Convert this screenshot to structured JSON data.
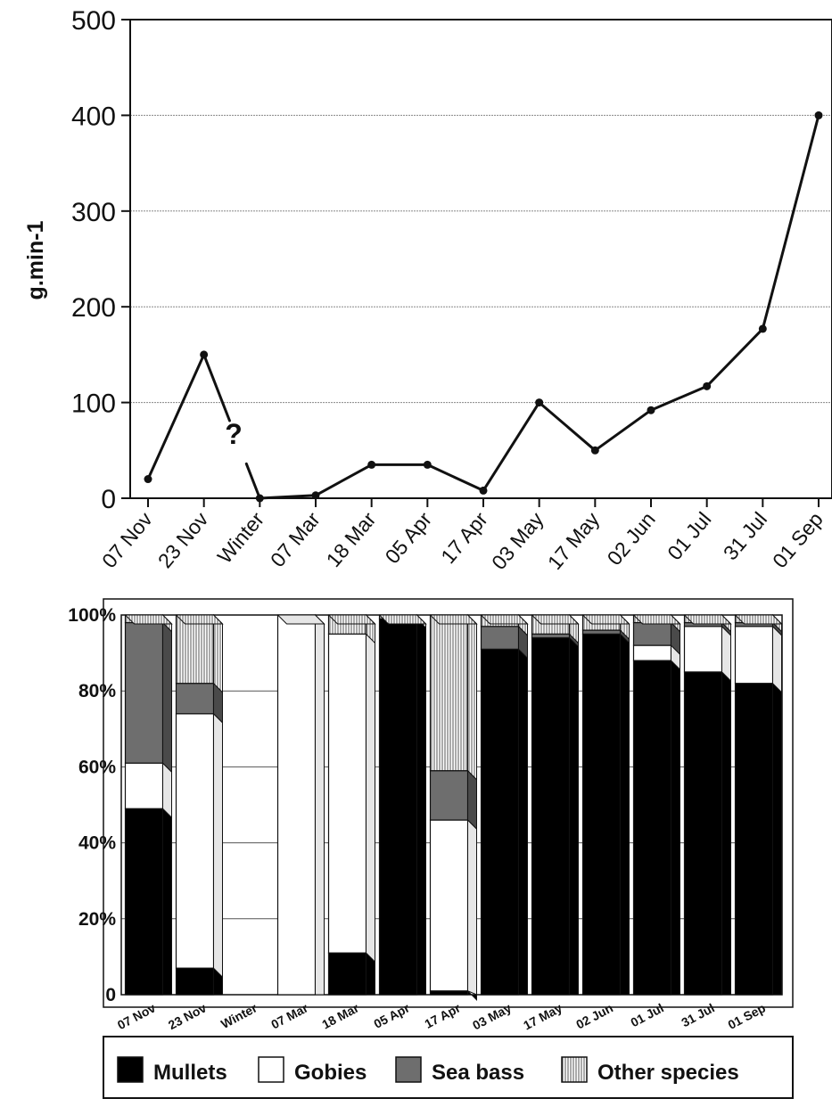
{
  "chart_data": [
    {
      "type": "line",
      "ylabel": "g.min-1",
      "xlabel": "",
      "ylim": [
        0,
        500
      ],
      "y_ticks": [
        "0",
        "100",
        "200",
        "300",
        "400",
        "500"
      ],
      "categories": [
        "07 Nov",
        "23 Nov",
        "Winter",
        "07 Mar",
        "18 Mar",
        "05 Apr",
        "17 Apr",
        "03 May",
        "17 May",
        "02 Jun",
        "01 Jul",
        "31 Jul",
        "01 Sep"
      ],
      "values": [
        20,
        150,
        0,
        3,
        35,
        35,
        8,
        100,
        50,
        92,
        117,
        177,
        400
      ],
      "annotation": {
        "text": "?",
        "between": [
          "23 Nov",
          "Winter"
        ]
      },
      "grid": true
    },
    {
      "type": "bar",
      "stacked": true,
      "ylim": [
        0,
        100
      ],
      "y_ticks": [
        "0",
        "20%",
        "40%",
        "60%",
        "80%",
        "100%"
      ],
      "categories": [
        "07 Nov",
        "23 Nov",
        "Winter",
        "07 Mar",
        "18 Mar",
        "05 Apr",
        "17 Apr",
        "03 May",
        "17 May",
        "02 Jun",
        "01 Jul",
        "31 Jul",
        "01 Sep"
      ],
      "series": [
        {
          "name": "Mullets",
          "values": [
            49,
            7,
            0,
            0,
            11,
            99,
            1,
            91,
            94,
            95,
            88,
            85,
            82
          ]
        },
        {
          "name": "Gobies",
          "values": [
            12,
            67,
            0,
            100,
            84,
            0,
            45,
            0,
            0,
            0,
            4,
            12,
            15
          ]
        },
        {
          "name": "Sea bass",
          "values": [
            37,
            8,
            0,
            0,
            0,
            0,
            13,
            6,
            1,
            1,
            6,
            1,
            1
          ]
        },
        {
          "name": "Other species",
          "values": [
            2,
            18,
            0,
            0,
            5,
            1,
            41,
            3,
            5,
            4,
            2,
            2,
            2
          ]
        }
      ],
      "grid": true,
      "legend_position": "bottom"
    }
  ],
  "legend": {
    "items": [
      {
        "label": "Mullets",
        "fill": "#000000"
      },
      {
        "label": "Gobies",
        "fill": "#ffffff"
      },
      {
        "label": "Sea bass",
        "fill": "#6e6e6e"
      },
      {
        "label": "Other species",
        "fill": "hatch"
      }
    ]
  }
}
